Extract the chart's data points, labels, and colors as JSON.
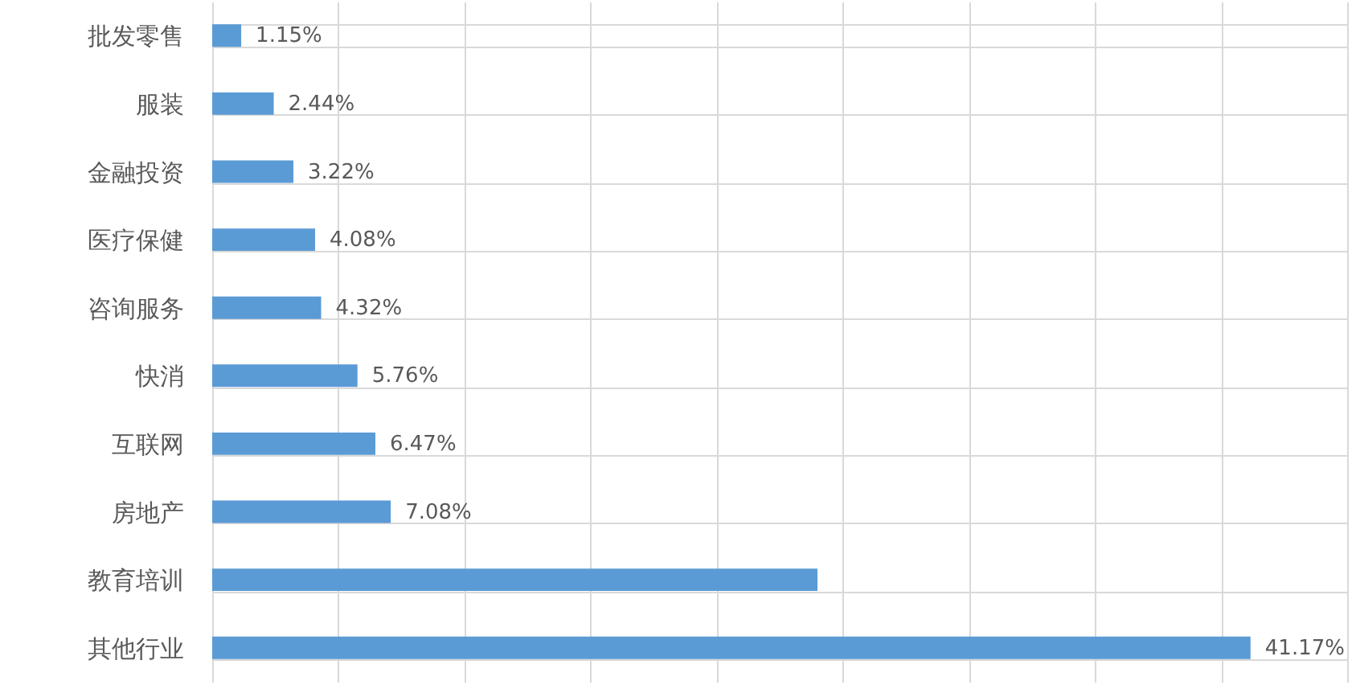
{
  "chart_data": {
    "type": "bar",
    "orientation": "horizontal",
    "categories": [
      "批发零售",
      "服装",
      "金融投资",
      "医疗保健",
      "咨询服务",
      "快消",
      "互联网",
      "房地产",
      "教育培训",
      "其他行业"
    ],
    "values": [
      1.15,
      2.44,
      3.22,
      4.08,
      4.32,
      5.76,
      6.47,
      7.08,
      24,
      41.17
    ],
    "value_labels": [
      "1.15%",
      "2.44%",
      "3.22%",
      "4.08%",
      "4.32%",
      "5.76%",
      "6.47%",
      "7.08%",
      null,
      "41.17%"
    ],
    "color": "#5b9bd5",
    "xlim": [
      0,
      45
    ],
    "xticks": [
      {
        "value": 0,
        "label": null
      },
      {
        "value": 5,
        "label": null
      },
      {
        "value": 10,
        "label": null
      },
      {
        "value": 15,
        "label": null
      },
      {
        "value": 20,
        "label": null
      },
      {
        "value": 25,
        "label": null
      },
      {
        "value": 30,
        "label": null
      },
      {
        "value": 35,
        "label": null
      },
      {
        "value": 40,
        "label": null
      },
      {
        "value": 45,
        "label": null
      }
    ],
    "grid": true,
    "tick_labels": "y"
  }
}
